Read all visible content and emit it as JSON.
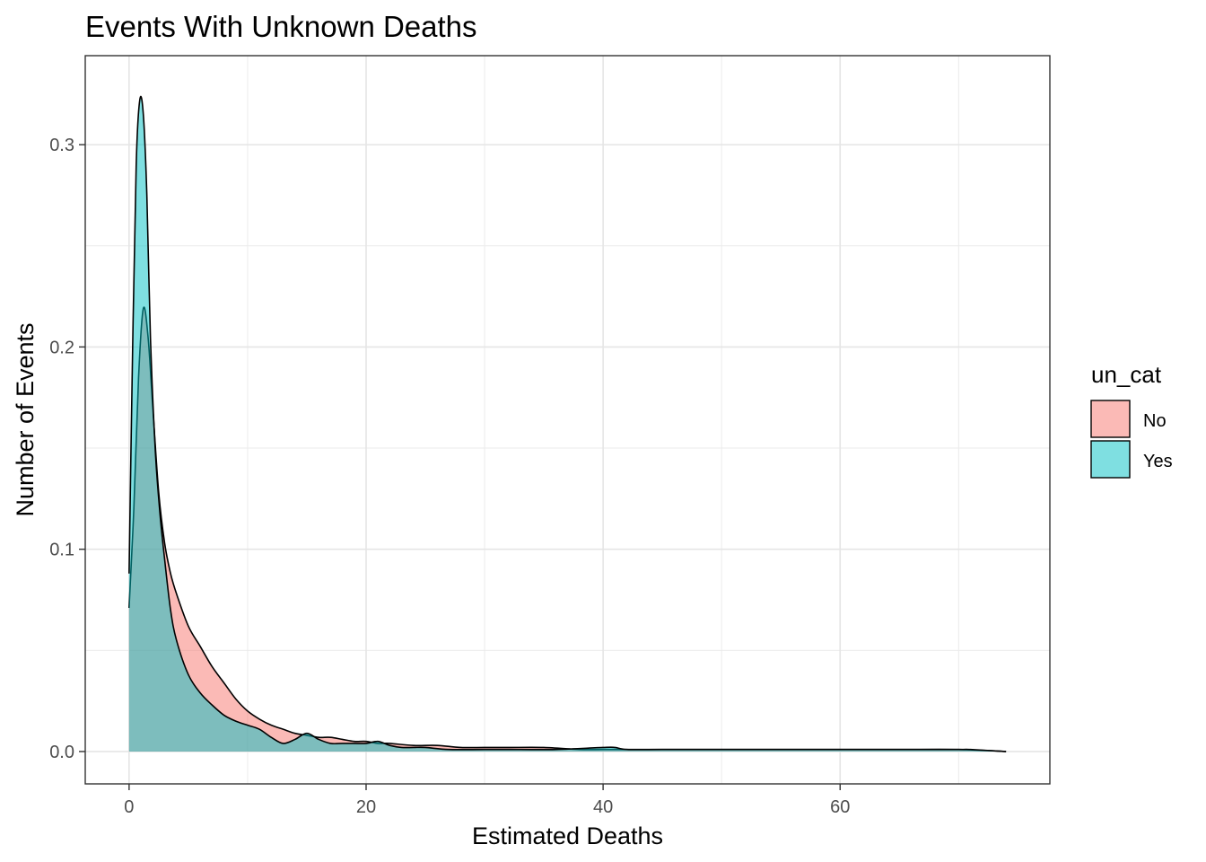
{
  "chart_data": {
    "type": "area",
    "title": "Events With Unknown Deaths",
    "xlabel": "Estimated Deaths",
    "ylabel": "Number of Events",
    "xlim": [
      -3.7,
      77.7
    ],
    "ylim": [
      -0.016,
      0.344
    ],
    "x_ticks": [
      0,
      20,
      40,
      60
    ],
    "x_tick_labels": [
      "0",
      "20",
      "40",
      "60"
    ],
    "y_ticks": [
      0.0,
      0.1,
      0.2,
      0.3
    ],
    "y_tick_labels": [
      "0.0",
      "0.1",
      "0.2",
      "0.3"
    ],
    "grid": true,
    "legend": {
      "title": "un_cat",
      "position": "right",
      "entries": [
        {
          "label": "No",
          "color": "#F8766D"
        },
        {
          "label": "Yes",
          "color": "#00BFC4"
        }
      ]
    },
    "series": [
      {
        "name": "No",
        "color": "#F8766D",
        "x": [
          0,
          0.4,
          0.8,
          1.2,
          1.6,
          2.0,
          2.5,
          3.0,
          3.5,
          4.0,
          5.0,
          6.0,
          7.0,
          8.0,
          9.0,
          10.0,
          11.0,
          12.0,
          13.0,
          14.0,
          15.0,
          16.0,
          17.0,
          18.0,
          19.0,
          20.0,
          21.0,
          22.0,
          24.0,
          26.0,
          28.0,
          30.0,
          32.0,
          35.0,
          38.0,
          40.0,
          42.0,
          45.0,
          50.0,
          55.0,
          60.0,
          65.0,
          70.0,
          74.0
        ],
        "y": [
          0.071,
          0.12,
          0.185,
          0.219,
          0.205,
          0.17,
          0.128,
          0.103,
          0.088,
          0.078,
          0.062,
          0.052,
          0.042,
          0.034,
          0.026,
          0.02,
          0.016,
          0.013,
          0.011,
          0.009,
          0.008,
          0.007,
          0.007,
          0.006,
          0.005,
          0.005,
          0.004,
          0.004,
          0.003,
          0.003,
          0.002,
          0.002,
          0.002,
          0.002,
          0.001,
          0.001,
          0.001,
          0.001,
          0.001,
          0.001,
          0.001,
          0.001,
          0.001,
          0.0
        ]
      },
      {
        "name": "Yes",
        "color": "#00BFC4",
        "x": [
          0,
          0.3,
          0.6,
          0.9,
          1.2,
          1.5,
          1.8,
          2.2,
          2.6,
          3.0,
          3.5,
          4.0,
          5.0,
          6.0,
          7.0,
          8.0,
          9.0,
          10.0,
          11.0,
          12.0,
          13.0,
          14.0,
          15.0,
          16.0,
          17.0,
          18.0,
          19.0,
          20.0,
          21.0,
          22.0,
          23.0,
          24.0,
          25.0,
          27.0,
          30.0,
          33.0,
          36.0,
          40.0,
          41.0,
          42.0,
          45.0,
          49.0,
          50.0,
          51.0,
          55.0,
          60.0,
          65.0,
          70.0,
          71.0,
          74.0
        ],
        "y": [
          0.088,
          0.2,
          0.29,
          0.322,
          0.315,
          0.275,
          0.205,
          0.15,
          0.118,
          0.095,
          0.07,
          0.055,
          0.038,
          0.029,
          0.023,
          0.018,
          0.015,
          0.013,
          0.011,
          0.007,
          0.004,
          0.006,
          0.009,
          0.006,
          0.004,
          0.004,
          0.004,
          0.004,
          0.005,
          0.003,
          0.002,
          0.002,
          0.002,
          0.001,
          0.001,
          0.001,
          0.001,
          0.002,
          0.002,
          0.001,
          0.001,
          0.001,
          0.001,
          0.001,
          0.001,
          0.001,
          0.001,
          0.001,
          0.001,
          0.0
        ]
      }
    ]
  }
}
